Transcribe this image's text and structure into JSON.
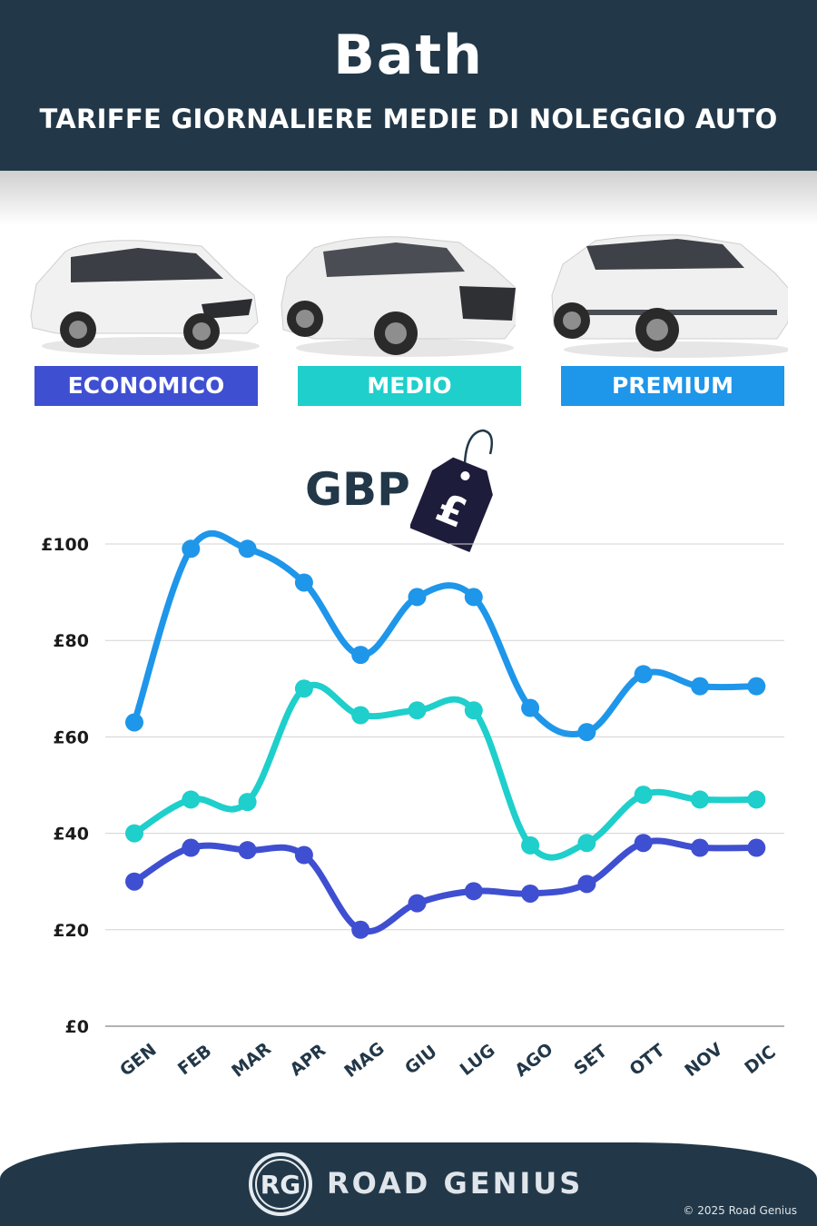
{
  "header": {
    "city": "Bath",
    "subtitle": "TARIFFE GIORNALIERE MEDIE DI NOLEGGIO AUTO"
  },
  "categories": [
    {
      "label": "ECONOMICO",
      "color": "#3f4fd1"
    },
    {
      "label": "MEDIO",
      "color": "#1ecfcb"
    },
    {
      "label": "PREMIUM",
      "color": "#1e96ea"
    }
  ],
  "currency": {
    "label": "GBP",
    "symbol": "£",
    "icon": "price-tag-icon"
  },
  "chart_data": {
    "type": "line",
    "categories": [
      "GEN",
      "FEB",
      "MAR",
      "APR",
      "MAG",
      "GIU",
      "LUG",
      "AGO",
      "SET",
      "OTT",
      "NOV",
      "DIC"
    ],
    "series": [
      {
        "name": "PREMIUM",
        "color": "#1e96ea",
        "values": [
          63,
          99,
          99,
          92,
          77,
          89,
          89,
          66,
          61,
          73,
          70.5,
          70.5
        ]
      },
      {
        "name": "MEDIO",
        "color": "#1ecfcb",
        "values": [
          40,
          47,
          46.5,
          70,
          64.5,
          65.5,
          65.5,
          37.5,
          38,
          48,
          47,
          47
        ]
      },
      {
        "name": "ECONOMICO",
        "color": "#3f4fd1",
        "values": [
          30,
          37,
          36.5,
          35.5,
          20,
          25.5,
          28,
          27.5,
          29.5,
          38,
          37,
          37
        ]
      }
    ],
    "yticks": [
      "£0",
      "£20",
      "£40",
      "£60",
      "£80",
      "£100"
    ],
    "ylim": [
      0,
      100
    ],
    "grid": true
  },
  "footer": {
    "logo_text": "RG",
    "brand": "ROAD GENIUS",
    "copyright": "© 2025 Road Genius"
  }
}
